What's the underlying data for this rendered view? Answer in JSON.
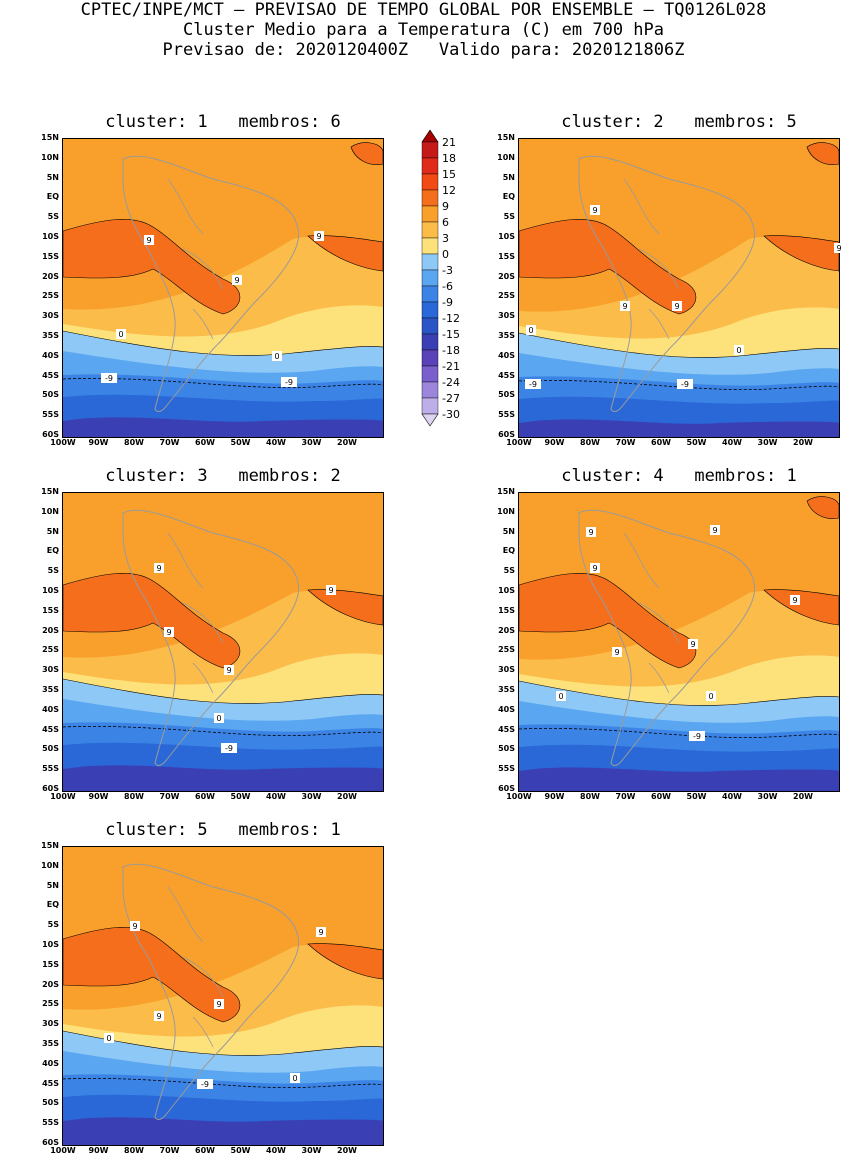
{
  "header": {
    "line1": "CPTEC/INPE/MCT — PREVISAO DE TEMPO GLOBAL POR ENSEMBLE — TQ0126L028",
    "line2": "Cluster Medio para a Temperatura (C) em 700 hPa",
    "line3": "Previsao de: 2020120400Z   Valido para: 2020121806Z"
  },
  "lat_ticks": [
    "15N",
    "10N",
    "5N",
    "EQ",
    "5S",
    "10S",
    "15S",
    "20S",
    "25S",
    "30S",
    "35S",
    "40S",
    "45S",
    "50S",
    "55S",
    "60S"
  ],
  "lon_ticks": [
    "100W",
    "90W",
    "80W",
    "70W",
    "60W",
    "50W",
    "40W",
    "30W",
    "20W"
  ],
  "colorbar": {
    "labels": [
      "21",
      "18",
      "15",
      "12",
      "9",
      "6",
      "3",
      "0",
      "-3",
      "-6",
      "-9",
      "-12",
      "-15",
      "-18",
      "-21",
      "-24",
      "-27",
      "-30"
    ],
    "colors": [
      "#a40000",
      "#c41a1a",
      "#e02a1a",
      "#f24a14",
      "#f56e1c",
      "#f9a02c",
      "#fcbc4a",
      "#fde27c",
      "#8ec8f6",
      "#5aa6f0",
      "#3b84e6",
      "#2a68d8",
      "#2b55c6",
      "#3a40b4",
      "#5a42b8",
      "#7a60cc",
      "#9c86dc",
      "#beaee8",
      "#ddd4f2"
    ]
  },
  "panels": [
    {
      "title": "cluster: 1   membros: 6",
      "contour_labels": [
        "9",
        "9",
        "9",
        "0",
        "0",
        "-9",
        "-9"
      ]
    },
    {
      "title": "cluster: 2   membros: 5",
      "contour_labels": [
        "9",
        "9",
        "9",
        "9",
        "0",
        "0",
        "-9",
        "-9"
      ]
    },
    {
      "title": "cluster: 3   membros: 2",
      "contour_labels": [
        "9",
        "9",
        "9",
        "9",
        "0",
        "-9"
      ]
    },
    {
      "title": "cluster: 4   membros: 1",
      "contour_labels": [
        "9",
        "9",
        "9",
        "9",
        "9",
        "9",
        "0",
        "0",
        "-9"
      ]
    },
    {
      "title": "cluster: 5   membros: 1",
      "contour_labels": [
        "9",
        "9",
        "9",
        "9",
        "0",
        "0",
        "-9"
      ]
    }
  ]
}
